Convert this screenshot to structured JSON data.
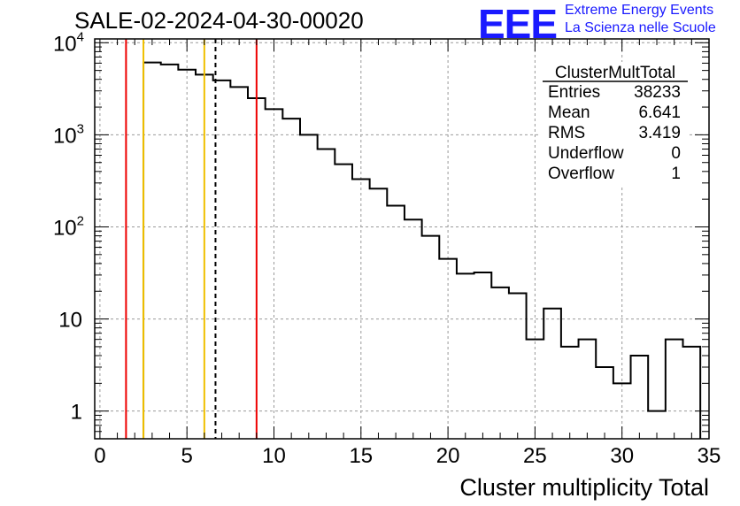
{
  "header": {
    "title": "SALE-02-2024-04-30-00020",
    "logo_mark": "EEE",
    "logo_line1": "Extreme Energy Events",
    "logo_line2": "La Scienza nelle Scuole"
  },
  "colors": {
    "histogram": "#000000",
    "red_lines": "#ee0000",
    "yellow_lines": "#f0c000",
    "mean_line": "#000000",
    "grid": "#9a9a9a",
    "logo": "#1a1aff"
  },
  "chart_data": {
    "type": "histogram",
    "title": "SALE-02-2024-04-30-00020",
    "xlabel": "Cluster multiplicity Total",
    "ylabel": "",
    "xlim": [
      -0.3,
      35
    ],
    "ylim": [
      0.5,
      11000
    ],
    "yscale": "log",
    "grid": true,
    "x_ticks": [
      0,
      5,
      10,
      15,
      20,
      25,
      30,
      35
    ],
    "y_ticks": [
      {
        "value": 1,
        "label": "1"
      },
      {
        "value": 10,
        "label": "10"
      },
      {
        "value": 100,
        "label": "10^2"
      },
      {
        "value": 1000,
        "label": "10^3"
      },
      {
        "value": 10000,
        "label": "10^4"
      }
    ],
    "bin_edges": [
      2.5,
      3.5,
      4.5,
      5.5,
      6.5,
      7.5,
      8.5,
      9.5,
      10.5,
      11.5,
      12.5,
      13.5,
      14.5,
      15.5,
      16.5,
      17.5,
      18.5,
      19.5,
      20.5,
      21.5,
      22.5,
      23.5,
      24.5,
      25.5,
      26.5,
      27.5,
      28.5,
      29.5,
      30.5,
      31.5,
      32.5,
      33.5,
      34.5
    ],
    "counts": [
      6100,
      5800,
      5100,
      4500,
      3900,
      3300,
      2500,
      1900,
      1500,
      1000,
      700,
      480,
      330,
      260,
      170,
      120,
      80,
      45,
      31,
      32,
      22,
      19,
      6,
      13,
      5,
      6,
      3,
      2,
      4,
      1,
      6,
      5
    ],
    "vertical_lines": [
      {
        "x": 1.5,
        "color": "red",
        "style": "solid"
      },
      {
        "x": 2.5,
        "color": "yellow",
        "style": "solid"
      },
      {
        "x": 6.0,
        "color": "yellow",
        "style": "solid"
      },
      {
        "x": 6.641,
        "color": "black",
        "style": "dashed"
      },
      {
        "x": 9.0,
        "color": "red",
        "style": "solid"
      }
    ],
    "stats": {
      "name": "ClusterMultTotal",
      "rows": [
        {
          "label": "Entries",
          "value": "38233"
        },
        {
          "label": "Mean",
          "value": "6.641"
        },
        {
          "label": "RMS",
          "value": "3.419"
        },
        {
          "label": "Underflow",
          "value": "0"
        },
        {
          "label": "Overflow",
          "value": "1"
        }
      ]
    }
  }
}
